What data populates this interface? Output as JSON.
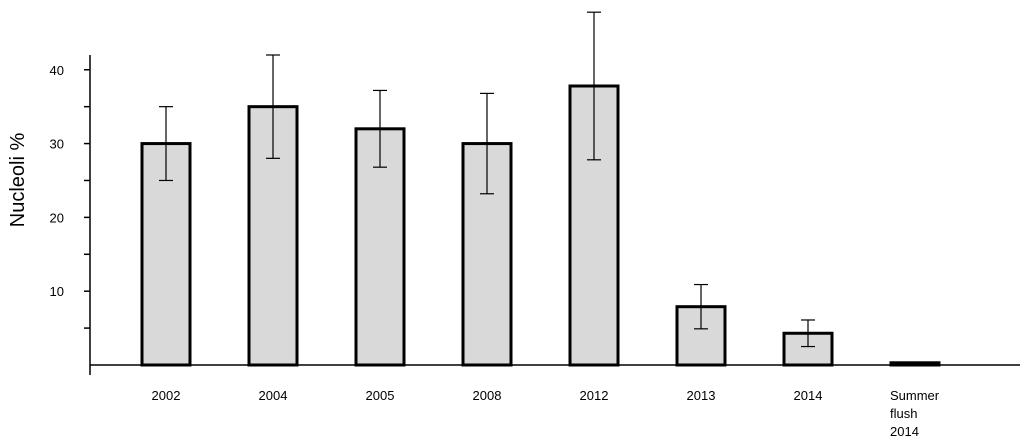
{
  "chart_data": {
    "type": "bar",
    "y_label": "Nucleoli %",
    "categories": [
      "2002",
      "2004",
      "2005",
      "2008",
      "2012",
      "2013",
      "2014",
      "Summer flush 2014"
    ],
    "values": [
      30,
      35,
      32,
      30,
      37.8,
      7.9,
      4.3,
      0.3
    ],
    "errors": [
      5,
      7,
      5.2,
      6.8,
      10,
      3,
      1.8,
      0
    ],
    "color": "#d9d9d9",
    "edge_color": "#000000",
    "ylim": [
      0,
      42
    ],
    "yticks": [
      10,
      20,
      30,
      40
    ],
    "minor_yticks": [
      5,
      15,
      25,
      35
    ],
    "grid": false
  }
}
